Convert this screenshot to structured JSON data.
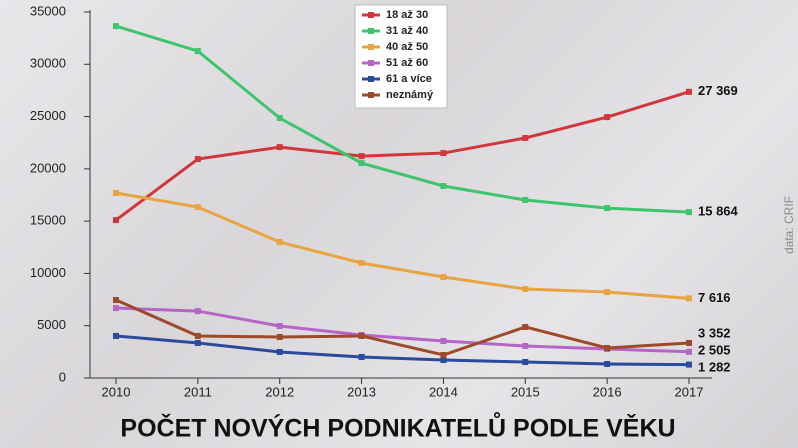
{
  "chart_data": {
    "type": "line",
    "title": "POČET NOVÝCH PODNIKATELŮ PODLE VĚKU",
    "source": "data: CRIF",
    "categories": [
      "2010",
      "2011",
      "2012",
      "2013",
      "2014",
      "2015",
      "2016",
      "2017"
    ],
    "ylim": [
      0,
      35000
    ],
    "yticks": [
      0,
      5000,
      10000,
      15000,
      20000,
      25000,
      30000,
      35000
    ],
    "grid": false,
    "legend": "top",
    "series": [
      {
        "name": "18 až 30",
        "color": "#d0373a",
        "values": [
          15100,
          20940,
          22080,
          21220,
          21510,
          22950,
          24950,
          27369
        ],
        "value_labels": [
          null,
          null,
          null,
          null,
          null,
          null,
          null,
          "27 369"
        ]
      },
      {
        "name": "31 až 40",
        "color": "#3ec46d",
        "values": [
          33650,
          31260,
          24860,
          20550,
          18360,
          17020,
          16250,
          15864
        ],
        "value_labels": [
          null,
          null,
          null,
          null,
          null,
          null,
          null,
          "15 864"
        ]
      },
      {
        "name": "40 až 50",
        "color": "#e8a441",
        "values": [
          17690,
          16350,
          13000,
          11000,
          9660,
          8510,
          8220,
          7616
        ],
        "value_labels": [
          null,
          null,
          null,
          null,
          null,
          null,
          null,
          "7 616"
        ]
      },
      {
        "name": "51 až 60",
        "color": "#b565c6",
        "values": [
          6690,
          6400,
          4970,
          4110,
          3540,
          3060,
          2770,
          2505
        ],
        "value_labels": [
          null,
          null,
          null,
          null,
          null,
          null,
          null,
          "2 505"
        ]
      },
      {
        "name": "61 a více",
        "color": "#2a4a9c",
        "values": [
          4020,
          3350,
          2490,
          2010,
          1720,
          1530,
          1340,
          1282
        ],
        "value_labels": [
          null,
          null,
          null,
          null,
          null,
          null,
          null,
          "1 282"
        ]
      },
      {
        "name": "neznámý",
        "color": "#9c4a2a",
        "values": [
          7460,
          4020,
          3920,
          4020,
          2200,
          4880,
          2870,
          3352
        ],
        "value_labels": [
          null,
          null,
          null,
          null,
          null,
          null,
          null,
          "3 352"
        ]
      }
    ]
  }
}
